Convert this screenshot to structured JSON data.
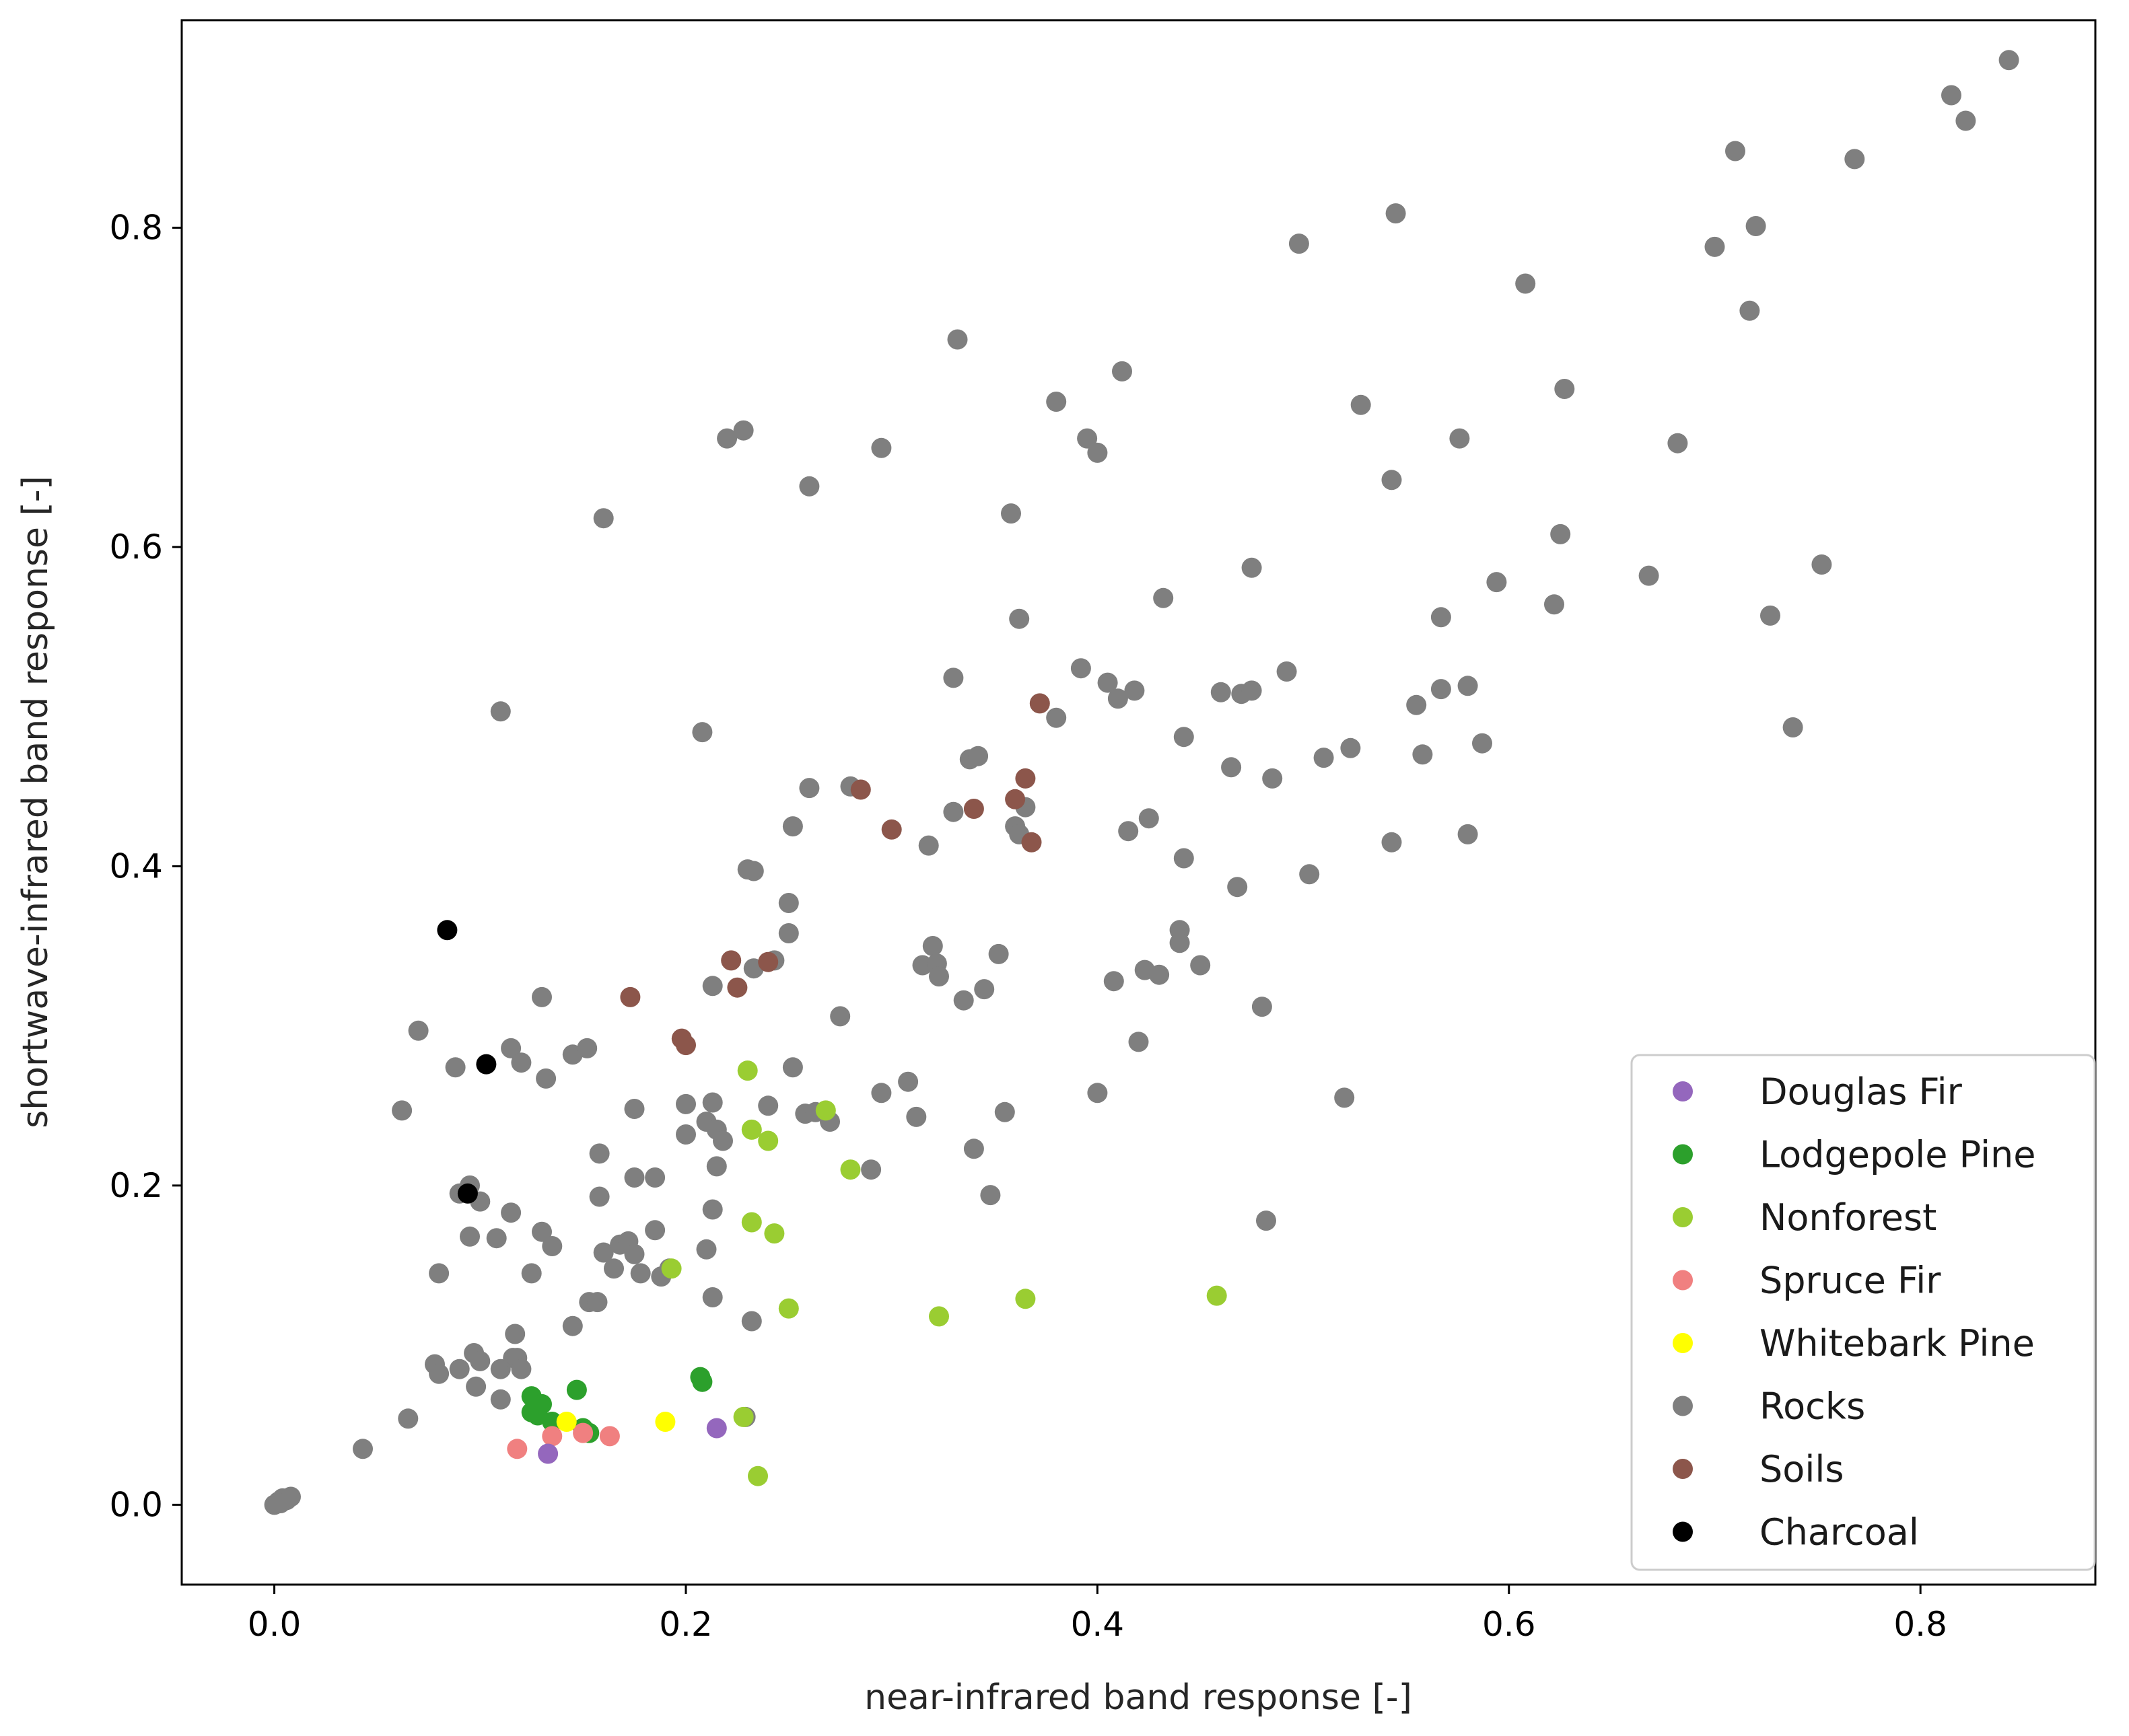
{
  "chart_data": {
    "type": "scatter",
    "title": "",
    "xlabel": "near-infrared band response [-]",
    "ylabel": "shortwave-infrared band response [-]",
    "xlim": [
      -0.045,
      0.885
    ],
    "ylim": [
      -0.05,
      0.93
    ],
    "xticks": [
      0.0,
      0.2,
      0.4,
      0.6,
      0.8
    ],
    "xtick_labels": [
      "0.0",
      "0.2",
      "0.4",
      "0.6",
      "0.8"
    ],
    "yticks": [
      0.0,
      0.2,
      0.4,
      0.6,
      0.8
    ],
    "ytick_labels": [
      "0.0",
      "0.2",
      "0.4",
      "0.6",
      "0.8"
    ],
    "grid": false,
    "legend_position": "bottom-right",
    "series": [
      {
        "name": "Rocks",
        "color": "#7f7f7f",
        "points": [
          [
            0.0,
            0.0
          ],
          [
            0.002,
            0.002
          ],
          [
            0.004,
            0.004
          ],
          [
            0.006,
            0.003
          ],
          [
            0.008,
            0.005
          ],
          [
            0.003,
            0.001
          ],
          [
            0.043,
            0.035
          ],
          [
            0.065,
            0.054
          ],
          [
            0.078,
            0.088
          ],
          [
            0.08,
            0.082
          ],
          [
            0.09,
            0.085
          ],
          [
            0.097,
            0.095
          ],
          [
            0.1,
            0.09
          ],
          [
            0.098,
            0.074
          ],
          [
            0.11,
            0.085
          ],
          [
            0.116,
            0.092
          ],
          [
            0.117,
            0.107
          ],
          [
            0.118,
            0.092
          ],
          [
            0.12,
            0.085
          ],
          [
            0.11,
            0.066
          ],
          [
            0.145,
            0.112
          ],
          [
            0.153,
            0.127
          ],
          [
            0.157,
            0.127
          ],
          [
            0.125,
            0.145
          ],
          [
            0.095,
            0.168
          ],
          [
            0.108,
            0.167
          ],
          [
            0.13,
            0.171
          ],
          [
            0.135,
            0.162
          ],
          [
            0.115,
            0.183
          ],
          [
            0.08,
            0.145
          ],
          [
            0.1,
            0.19
          ],
          [
            0.095,
            0.2
          ],
          [
            0.09,
            0.195
          ],
          [
            0.062,
            0.247
          ],
          [
            0.07,
            0.297
          ],
          [
            0.088,
            0.274
          ],
          [
            0.115,
            0.286
          ],
          [
            0.12,
            0.277
          ],
          [
            0.132,
            0.267
          ],
          [
            0.13,
            0.318
          ],
          [
            0.145,
            0.282
          ],
          [
            0.152,
            0.286
          ],
          [
            0.11,
            0.497
          ],
          [
            0.158,
            0.22
          ],
          [
            0.158,
            0.193
          ],
          [
            0.16,
            0.158
          ],
          [
            0.168,
            0.163
          ],
          [
            0.172,
            0.165
          ],
          [
            0.175,
            0.157
          ],
          [
            0.178,
            0.145
          ],
          [
            0.165,
            0.148
          ],
          [
            0.175,
            0.205
          ],
          [
            0.175,
            0.248
          ],
          [
            0.185,
            0.205
          ],
          [
            0.185,
            0.172
          ],
          [
            0.188,
            0.143
          ],
          [
            0.192,
            0.148
          ],
          [
            0.2,
            0.251
          ],
          [
            0.2,
            0.232
          ],
          [
            0.21,
            0.24
          ],
          [
            0.213,
            0.252
          ],
          [
            0.215,
            0.235
          ],
          [
            0.215,
            0.212
          ],
          [
            0.218,
            0.228
          ],
          [
            0.213,
            0.185
          ],
          [
            0.21,
            0.16
          ],
          [
            0.213,
            0.13
          ],
          [
            0.232,
            0.115
          ],
          [
            0.229,
            0.055
          ],
          [
            0.213,
            0.325
          ],
          [
            0.208,
            0.484
          ],
          [
            0.22,
            0.668
          ],
          [
            0.228,
            0.673
          ],
          [
            0.16,
            0.618
          ],
          [
            0.23,
            0.398
          ],
          [
            0.233,
            0.397
          ],
          [
            0.233,
            0.336
          ],
          [
            0.243,
            0.341
          ],
          [
            0.25,
            0.358
          ],
          [
            0.25,
            0.377
          ],
          [
            0.252,
            0.274
          ],
          [
            0.252,
            0.425
          ],
          [
            0.26,
            0.449
          ],
          [
            0.258,
            0.245
          ],
          [
            0.24,
            0.25
          ],
          [
            0.263,
            0.246
          ],
          [
            0.27,
            0.24
          ],
          [
            0.26,
            0.638
          ],
          [
            0.275,
            0.306
          ],
          [
            0.28,
            0.45
          ],
          [
            0.295,
            0.662
          ],
          [
            0.295,
            0.258
          ],
          [
            0.29,
            0.21
          ],
          [
            0.308,
            0.265
          ],
          [
            0.312,
            0.243
          ],
          [
            0.315,
            0.338
          ],
          [
            0.318,
            0.413
          ],
          [
            0.32,
            0.35
          ],
          [
            0.322,
            0.339
          ],
          [
            0.323,
            0.331
          ],
          [
            0.33,
            0.434
          ],
          [
            0.33,
            0.518
          ],
          [
            0.332,
            0.73
          ],
          [
            0.335,
            0.316
          ],
          [
            0.338,
            0.467
          ],
          [
            0.342,
            0.469
          ],
          [
            0.34,
            0.223
          ],
          [
            0.345,
            0.323
          ],
          [
            0.348,
            0.194
          ],
          [
            0.352,
            0.345
          ],
          [
            0.355,
            0.246
          ],
          [
            0.358,
            0.621
          ],
          [
            0.36,
            0.425
          ],
          [
            0.362,
            0.42
          ],
          [
            0.365,
            0.437
          ],
          [
            0.362,
            0.555
          ],
          [
            0.38,
            0.493
          ],
          [
            0.38,
            0.691
          ],
          [
            0.392,
            0.524
          ],
          [
            0.395,
            0.668
          ],
          [
            0.4,
            0.659
          ],
          [
            0.4,
            0.258
          ],
          [
            0.405,
            0.515
          ],
          [
            0.408,
            0.328
          ],
          [
            0.41,
            0.505
          ],
          [
            0.412,
            0.71
          ],
          [
            0.415,
            0.422
          ],
          [
            0.418,
            0.51
          ],
          [
            0.42,
            0.29
          ],
          [
            0.423,
            0.335
          ],
          [
            0.425,
            0.43
          ],
          [
            0.43,
            0.332
          ],
          [
            0.432,
            0.568
          ],
          [
            0.44,
            0.36
          ],
          [
            0.44,
            0.352
          ],
          [
            0.442,
            0.405
          ],
          [
            0.442,
            0.481
          ],
          [
            0.45,
            0.338
          ],
          [
            0.46,
            0.509
          ],
          [
            0.465,
            0.462
          ],
          [
            0.468,
            0.387
          ],
          [
            0.47,
            0.508
          ],
          [
            0.475,
            0.51
          ],
          [
            0.475,
            0.587
          ],
          [
            0.48,
            0.312
          ],
          [
            0.482,
            0.178
          ],
          [
            0.485,
            0.455
          ],
          [
            0.492,
            0.522
          ],
          [
            0.498,
            0.79
          ],
          [
            0.503,
            0.395
          ],
          [
            0.51,
            0.468
          ],
          [
            0.52,
            0.255
          ],
          [
            0.523,
            0.474
          ],
          [
            0.528,
            0.689
          ],
          [
            0.543,
            0.415
          ],
          [
            0.543,
            0.642
          ],
          [
            0.545,
            0.809
          ],
          [
            0.555,
            0.501
          ],
          [
            0.558,
            0.47
          ],
          [
            0.567,
            0.511
          ],
          [
            0.567,
            0.556
          ],
          [
            0.576,
            0.668
          ],
          [
            0.58,
            0.513
          ],
          [
            0.58,
            0.42
          ],
          [
            0.587,
            0.477
          ],
          [
            0.594,
            0.578
          ],
          [
            0.608,
            0.765
          ],
          [
            0.622,
            0.564
          ],
          [
            0.625,
            0.608
          ],
          [
            0.627,
            0.699
          ],
          [
            0.668,
            0.582
          ],
          [
            0.682,
            0.665
          ],
          [
            0.7,
            0.788
          ],
          [
            0.71,
            0.848
          ],
          [
            0.717,
            0.748
          ],
          [
            0.72,
            0.801
          ],
          [
            0.727,
            0.557
          ],
          [
            0.738,
            0.487
          ],
          [
            0.752,
            0.589
          ],
          [
            0.768,
            0.843
          ],
          [
            0.815,
            0.883
          ],
          [
            0.822,
            0.867
          ],
          [
            0.843,
            0.905
          ]
        ]
      },
      {
        "name": "Soils",
        "color": "#8c564b",
        "points": [
          [
            0.173,
            0.318
          ],
          [
            0.198,
            0.292
          ],
          [
            0.2,
            0.288
          ],
          [
            0.222,
            0.341
          ],
          [
            0.225,
            0.324
          ],
          [
            0.24,
            0.34
          ],
          [
            0.285,
            0.448
          ],
          [
            0.3,
            0.423
          ],
          [
            0.34,
            0.436
          ],
          [
            0.36,
            0.442
          ],
          [
            0.365,
            0.455
          ],
          [
            0.368,
            0.415
          ],
          [
            0.372,
            0.502
          ]
        ]
      },
      {
        "name": "Charcoal",
        "color": "#000000",
        "points": [
          [
            0.084,
            0.36
          ],
          [
            0.103,
            0.276
          ],
          [
            0.094,
            0.195
          ]
        ]
      },
      {
        "name": "Nonforest",
        "color": "#9acd32",
        "points": [
          [
            0.23,
            0.272
          ],
          [
            0.232,
            0.235
          ],
          [
            0.24,
            0.228
          ],
          [
            0.268,
            0.247
          ],
          [
            0.28,
            0.21
          ],
          [
            0.232,
            0.177
          ],
          [
            0.243,
            0.17
          ],
          [
            0.25,
            0.123
          ],
          [
            0.323,
            0.118
          ],
          [
            0.365,
            0.129
          ],
          [
            0.458,
            0.131
          ],
          [
            0.228,
            0.055
          ],
          [
            0.235,
            0.018
          ],
          [
            0.193,
            0.148
          ]
        ]
      },
      {
        "name": "Lodgepole Pine",
        "color": "#2ca02c",
        "points": [
          [
            0.125,
            0.068
          ],
          [
            0.13,
            0.063
          ],
          [
            0.128,
            0.056
          ],
          [
            0.135,
            0.052
          ],
          [
            0.147,
            0.072
          ],
          [
            0.15,
            0.048
          ],
          [
            0.153,
            0.045
          ],
          [
            0.207,
            0.08
          ],
          [
            0.208,
            0.077
          ],
          [
            0.125,
            0.058
          ]
        ]
      },
      {
        "name": "Spruce Fir",
        "color": "#f08080",
        "points": [
          [
            0.118,
            0.035
          ],
          [
            0.135,
            0.043
          ],
          [
            0.15,
            0.045
          ],
          [
            0.163,
            0.043
          ]
        ]
      },
      {
        "name": "Whitebark Pine",
        "color": "#ffff00",
        "points": [
          [
            0.142,
            0.052
          ],
          [
            0.19,
            0.052
          ]
        ]
      },
      {
        "name": "Douglas Fir",
        "color": "#9467bd",
        "points": [
          [
            0.133,
            0.032
          ],
          [
            0.215,
            0.048
          ]
        ]
      }
    ],
    "legend": [
      {
        "name": "Douglas Fir",
        "color": "#9467bd"
      },
      {
        "name": "Lodgepole Pine",
        "color": "#2ca02c"
      },
      {
        "name": "Nonforest",
        "color": "#9acd32"
      },
      {
        "name": "Spruce Fir",
        "color": "#f08080"
      },
      {
        "name": "Whitebark Pine",
        "color": "#ffff00"
      },
      {
        "name": "Rocks",
        "color": "#7f7f7f"
      },
      {
        "name": "Soils",
        "color": "#8c564b"
      },
      {
        "name": "Charcoal",
        "color": "#000000"
      }
    ]
  }
}
